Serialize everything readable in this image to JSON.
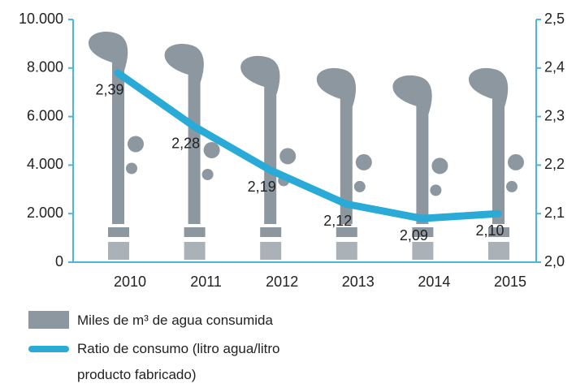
{
  "chart_data": {
    "type": "bar_line",
    "categories": [
      "2010",
      "2011",
      "2012",
      "2013",
      "2014",
      "2015"
    ],
    "series": [
      {
        "name": "Miles de m³ de agua consumida",
        "color": "#8d979f",
        "values": [
          9500,
          9000,
          8500,
          8000,
          7700,
          8000
        ]
      },
      {
        "name": "Ratio de consumo (litro agua/litro producto fabricado)",
        "color": "#2aaad6",
        "axis": "y2",
        "values": [
          2.39,
          2.28,
          2.19,
          2.12,
          2.09,
          2.1
        ],
        "value_labels": [
          "2,39",
          "2,28",
          "2,19",
          "2,12",
          "2,09",
          "2,10"
        ]
      }
    ],
    "ylim": [
      0,
      10000
    ],
    "yticks": [
      0,
      {
        "value": 2000,
        "label": "2.000"
      },
      {
        "value": 4000,
        "label": "4.000"
      },
      {
        "value": 6000,
        "label": "6.000"
      },
      {
        "value": 8000,
        "label": "8.000"
      },
      {
        "value": 10000,
        "label": "10.000"
      }
    ],
    "y2lim": [
      2.0,
      2.5
    ],
    "y2ticks": [
      {
        "value": 2.0,
        "label": "2,0"
      },
      {
        "value": 2.1,
        "label": "2,1"
      },
      {
        "value": 2.2,
        "label": "2,2"
      },
      {
        "value": 2.3,
        "label": "2,3"
      },
      {
        "value": 2.4,
        "label": "2,4"
      },
      {
        "value": 2.5,
        "label": "2,5"
      }
    ],
    "legend": "bottom-left"
  }
}
